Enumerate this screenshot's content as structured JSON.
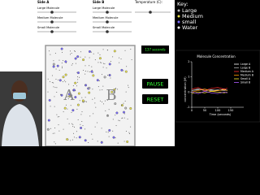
{
  "controls": {
    "side_a": "Side A",
    "side_b": "Side B",
    "temperature": "Temperature (C):",
    "rows": [
      "Large Molecule",
      "Medium Molecule",
      "Small Molecule"
    ]
  },
  "key": {
    "title": "Key:",
    "items": [
      {
        "label": "Large",
        "color": "#bbbbbb"
      },
      {
        "label": "Medium",
        "color": "#e8e04a"
      },
      {
        "label": "small",
        "color": "#7a6cff"
      },
      {
        "label": "Water",
        "color": "#ffffff"
      }
    ]
  },
  "beaker": {
    "left": "A",
    "right": "B"
  },
  "timer": "137 seconds",
  "buttons": [
    "PAUSE",
    "RESET"
  ],
  "chart": {
    "title": "Molecule Concentration",
    "x_label": "Time (seconds)",
    "y_label": "concentration (M)",
    "x": [
      0,
      25,
      50,
      75,
      100,
      125,
      137
    ],
    "xlim": [
      0,
      200
    ],
    "xticks": [
      0,
      50,
      100,
      150
    ],
    "ylim": [
      -1,
      2
    ],
    "yticks": [
      -1,
      0,
      1,
      2
    ],
    "series": [
      {
        "name": "Large A",
        "color": "#ffffff",
        "values": [
          0.1,
          0.2,
          0.1,
          0.15,
          0.1,
          0.2,
          0.1
        ]
      },
      {
        "name": "Large B",
        "color": "#aaaaaa",
        "values": [
          0.1,
          0.15,
          0.2,
          0.1,
          0.15,
          0.1,
          0.15
        ]
      },
      {
        "name": "Medium A",
        "color": "#ff3030",
        "values": [
          0.2,
          0.3,
          0.1,
          0.25,
          0.3,
          0.2,
          0.25
        ]
      },
      {
        "name": "Medium B",
        "color": "#ff9900",
        "values": [
          0.0,
          0.1,
          0.2,
          0.05,
          0.1,
          0.15,
          0.1
        ]
      },
      {
        "name": "Small A",
        "color": "#ffee33",
        "values": [
          -0.1,
          0.0,
          -0.05,
          0.05,
          0.0,
          -0.05,
          0.0
        ]
      },
      {
        "name": "Small B",
        "color": "#b05cff",
        "values": [
          0.0,
          -0.1,
          0.05,
          -0.05,
          -0.1,
          0.0,
          -0.05
        ]
      }
    ]
  }
}
